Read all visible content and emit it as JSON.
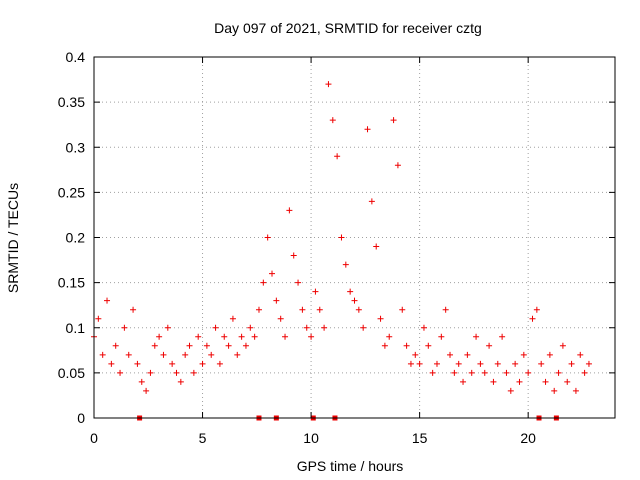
{
  "chart_data": {
    "type": "scatter",
    "title": "Day 097 of 2021, SRMTID for receiver cztg",
    "xlabel": "GPS time / hours",
    "ylabel": "SRMTID / TECUs",
    "xlim": [
      0,
      24
    ],
    "ylim": [
      0,
      0.4
    ],
    "xticks": [
      0,
      5,
      10,
      15,
      20
    ],
    "xtick_labels": [
      "0",
      "5",
      "10",
      "15",
      "20"
    ],
    "yticks": [
      0,
      0.05,
      0.1,
      0.15,
      0.2,
      0.25,
      0.3,
      0.35,
      0.4
    ],
    "ytick_labels": [
      "0",
      "0.05",
      "0.1",
      "0.15",
      "0.2",
      "0.25",
      "0.3",
      "0.35",
      "0.4"
    ],
    "grid": true,
    "marker": "plus",
    "color": "#ee0000",
    "baseline_markers_x": [
      2.1,
      7.6,
      8.4,
      10.1,
      11.1,
      20.5,
      21.3
    ],
    "series": [
      {
        "name": "SRMTID",
        "x": [
          0.0,
          0.2,
          0.4,
          0.6,
          0.8,
          1.0,
          1.2,
          1.4,
          1.6,
          1.8,
          2.0,
          2.2,
          2.4,
          2.6,
          2.8,
          3.0,
          3.2,
          3.4,
          3.6,
          3.8,
          4.0,
          4.2,
          4.4,
          4.6,
          4.8,
          5.0,
          5.2,
          5.4,
          5.6,
          5.8,
          6.0,
          6.2,
          6.4,
          6.6,
          6.8,
          7.0,
          7.2,
          7.4,
          7.6,
          7.8,
          8.0,
          8.2,
          8.4,
          8.6,
          8.8,
          9.0,
          9.2,
          9.4,
          9.6,
          9.8,
          10.0,
          10.2,
          10.4,
          10.6,
          10.8,
          11.0,
          11.2,
          11.4,
          11.6,
          11.8,
          12.0,
          12.2,
          12.4,
          12.6,
          12.8,
          13.0,
          13.2,
          13.4,
          13.6,
          13.8,
          14.0,
          14.2,
          14.4,
          14.6,
          14.8,
          15.0,
          15.2,
          15.4,
          15.6,
          15.8,
          16.0,
          16.2,
          16.4,
          16.6,
          16.8,
          17.0,
          17.2,
          17.4,
          17.6,
          17.8,
          18.0,
          18.2,
          18.4,
          18.6,
          18.8,
          19.0,
          19.2,
          19.4,
          19.6,
          19.8,
          20.0,
          20.2,
          20.4,
          20.6,
          20.8,
          21.0,
          21.2,
          21.4,
          21.6,
          21.8,
          22.0,
          22.2,
          22.4,
          22.6,
          22.8
        ],
        "y": [
          0.09,
          0.11,
          0.07,
          0.13,
          0.06,
          0.08,
          0.05,
          0.1,
          0.07,
          0.12,
          0.06,
          0.04,
          0.03,
          0.05,
          0.08,
          0.09,
          0.07,
          0.1,
          0.06,
          0.05,
          0.04,
          0.07,
          0.08,
          0.05,
          0.09,
          0.06,
          0.08,
          0.07,
          0.1,
          0.06,
          0.09,
          0.08,
          0.11,
          0.07,
          0.09,
          0.08,
          0.1,
          0.09,
          0.12,
          0.15,
          0.2,
          0.16,
          0.13,
          0.11,
          0.09,
          0.23,
          0.18,
          0.15,
          0.12,
          0.1,
          0.09,
          0.14,
          0.12,
          0.1,
          0.37,
          0.33,
          0.29,
          0.2,
          0.17,
          0.14,
          0.13,
          0.12,
          0.1,
          0.32,
          0.24,
          0.19,
          0.11,
          0.08,
          0.09,
          0.33,
          0.28,
          0.12,
          0.08,
          0.06,
          0.07,
          0.06,
          0.1,
          0.08,
          0.05,
          0.06,
          0.09,
          0.12,
          0.07,
          0.05,
          0.06,
          0.04,
          0.07,
          0.05,
          0.09,
          0.06,
          0.05,
          0.08,
          0.04,
          0.06,
          0.09,
          0.05,
          0.03,
          0.06,
          0.04,
          0.07,
          0.05,
          0.11,
          0.12,
          0.06,
          0.04,
          0.07,
          0.03,
          0.05,
          0.08,
          0.04,
          0.06,
          0.03,
          0.07,
          0.05,
          0.06
        ]
      }
    ]
  }
}
